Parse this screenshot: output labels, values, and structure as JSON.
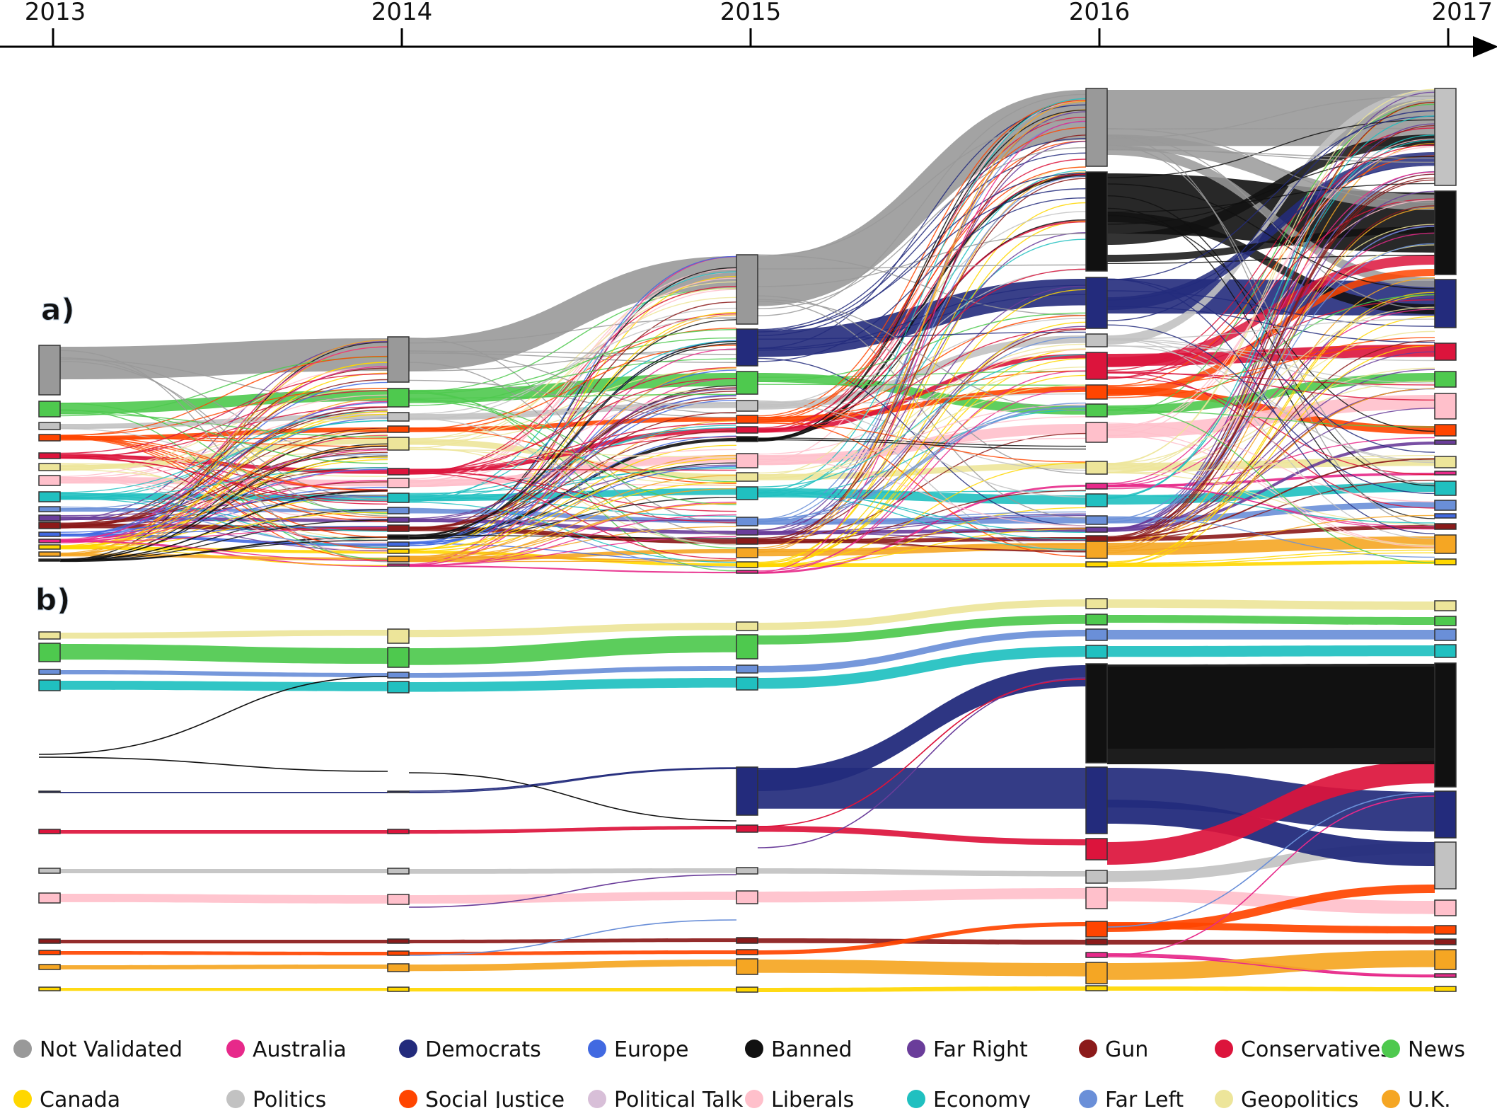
{
  "panel_labels": {
    "a": "a)",
    "b": "b)"
  },
  "years": [
    "2013",
    "2014",
    "2015",
    "2016",
    "2017"
  ],
  "categories": [
    {
      "key": "notvalidated",
      "label": "Not Validated",
      "color": "#999999"
    },
    {
      "key": "australia",
      "label": "Australia",
      "color": "#e7298a"
    },
    {
      "key": "democrats",
      "label": "Democrats",
      "color": "#232b7c"
    },
    {
      "key": "europe",
      "label": "Europe",
      "color": "#4169e1"
    },
    {
      "key": "banned",
      "label": "Banned",
      "color": "#111111"
    },
    {
      "key": "farright",
      "label": "Far Right",
      "color": "#6a3d9a"
    },
    {
      "key": "gun",
      "label": "Gun",
      "color": "#8b1a1a"
    },
    {
      "key": "conservatives",
      "label": "Conservatives",
      "color": "#dc143c"
    },
    {
      "key": "news",
      "label": "News",
      "color": "#4ec94e"
    },
    {
      "key": "canada",
      "label": "Canada",
      "color": "#ffd700"
    },
    {
      "key": "politics",
      "label": "Politics",
      "color": "#c2c2c2"
    },
    {
      "key": "socialjustice",
      "label": "Social Justice",
      "color": "#ff4500"
    },
    {
      "key": "politicaltalk",
      "label": "Political Talk",
      "color": "#d8bfd8"
    },
    {
      "key": "liberals",
      "label": "Liberals",
      "color": "#ffc0cb"
    },
    {
      "key": "economy",
      "label": "Economy",
      "color": "#20c0c0"
    },
    {
      "key": "farleft",
      "label": "Far Left",
      "color": "#6a8fd8"
    },
    {
      "key": "geopolitics",
      "label": "Geopolitics",
      "color": "#ede59a"
    },
    {
      "key": "uk",
      "label": "U.K.",
      "color": "#f5a623"
    }
  ]
}
